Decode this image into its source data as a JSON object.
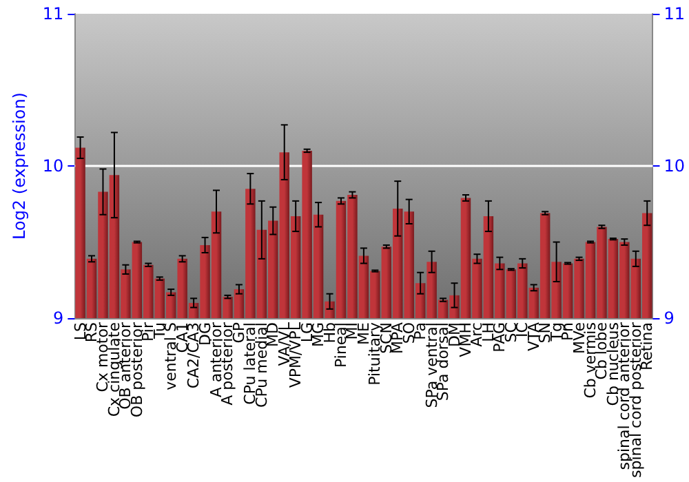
{
  "chart_data": {
    "type": "bar",
    "ylabel": "Log2 (expression)",
    "categories": [
      "LS",
      "RS",
      "Cx motor",
      "Cx cingulate",
      "OB anterior",
      "OB posterior",
      "Pir",
      "Tu",
      "ventral S",
      "CA1",
      "CA2/CA3",
      "DG",
      "A anterior",
      "A posterior",
      "GP",
      "CPu lateral",
      "CPu medial",
      "MD",
      "VA/VL",
      "VPM/VPL",
      "LG",
      "MG",
      "Hb",
      "Pineal",
      "MI",
      "ME",
      "Pituitary",
      "SCN",
      "MPA",
      "SO",
      "Pa",
      "SPa ventral",
      "SPa dorsal",
      "DM",
      "VMH",
      "Arc",
      "LH",
      "PAG",
      "SC",
      "IC",
      "VTA",
      "SN",
      "Tg",
      "Pn",
      "MVe",
      "Cb vermis",
      "Cb lobe",
      "Cb nucleus",
      "spinal cord anterior",
      "spinal cord posterior",
      "Retina"
    ],
    "values": [
      10.12,
      9.39,
      9.83,
      9.94,
      9.32,
      9.5,
      9.35,
      9.26,
      9.17,
      9.39,
      9.1,
      9.48,
      9.7,
      9.14,
      9.19,
      9.85,
      9.58,
      9.64,
      10.09,
      9.67,
      10.1,
      9.68,
      9.11,
      9.77,
      9.81,
      9.41,
      9.31,
      9.47,
      9.72,
      9.7,
      9.23,
      9.37,
      9.12,
      9.15,
      9.79,
      9.39,
      9.67,
      9.36,
      9.32,
      9.36,
      9.2,
      9.69,
      9.37,
      9.36,
      9.39,
      9.5,
      9.6,
      9.52,
      9.5,
      9.39,
      9.69
    ],
    "errors": [
      0.07,
      0.02,
      0.15,
      0.28,
      0.03,
      0.005,
      0.01,
      0.01,
      0.02,
      0.02,
      0.03,
      0.05,
      0.14,
      0.01,
      0.03,
      0.1,
      0.19,
      0.09,
      0.18,
      0.1,
      0.01,
      0.08,
      0.05,
      0.02,
      0.02,
      0.05,
      0.005,
      0.01,
      0.18,
      0.08,
      0.07,
      0.07,
      0.01,
      0.08,
      0.02,
      0.03,
      0.1,
      0.04,
      0.005,
      0.03,
      0.02,
      0.01,
      0.13,
      0.005,
      0.01,
      0.005,
      0.01,
      0.005,
      0.02,
      0.05,
      0.08
    ],
    "color": "#c0353a",
    "ylim": [
      9,
      11
    ],
    "yticks": [
      9,
      10,
      11
    ],
    "y2lim": [
      9,
      11
    ],
    "y2ticks": [
      9,
      10,
      11
    ],
    "grid": "y"
  }
}
